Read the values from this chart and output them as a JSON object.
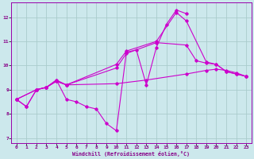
{
  "xlabel": "Windchill (Refroidissement éolien,°C)",
  "bg_color": "#cce8ec",
  "grid_color": "#aacccc",
  "line_color": "#cc00cc",
  "spine_color": "#9900aa",
  "tick_color": "#880088",
  "xlim": [
    -0.5,
    23.5
  ],
  "ylim": [
    6.8,
    12.6
  ],
  "yticks": [
    7,
    8,
    9,
    10,
    11,
    12
  ],
  "xticks": [
    0,
    1,
    2,
    3,
    4,
    5,
    6,
    7,
    8,
    9,
    10,
    11,
    12,
    13,
    14,
    15,
    16,
    17,
    18,
    19,
    20,
    21,
    22,
    23
  ],
  "line_a_x": [
    0,
    1,
    2,
    3,
    4,
    5,
    6,
    7,
    8,
    9,
    10,
    11,
    12,
    13,
    14,
    15,
    16,
    17
  ],
  "line_a_y": [
    8.6,
    8.3,
    9.0,
    9.1,
    9.4,
    8.6,
    8.5,
    8.3,
    8.2,
    7.6,
    7.3,
    10.55,
    10.65,
    9.2,
    10.75,
    11.7,
    12.3,
    12.15
  ],
  "line_b_x": [
    0,
    1,
    2,
    3,
    4,
    5,
    10,
    11,
    14,
    17,
    18,
    19,
    20,
    21,
    22,
    23
  ],
  "line_b_y": [
    8.6,
    8.3,
    9.0,
    9.1,
    9.4,
    9.2,
    9.9,
    10.5,
    10.95,
    10.85,
    10.2,
    10.1,
    10.05,
    9.75,
    9.65,
    9.55
  ],
  "line_c_x": [
    0,
    2,
    3,
    4,
    5,
    10,
    13,
    17,
    19,
    20,
    21,
    22,
    23
  ],
  "line_c_y": [
    8.6,
    9.0,
    9.1,
    9.35,
    9.2,
    9.25,
    9.4,
    9.65,
    9.8,
    9.85,
    9.8,
    9.7,
    9.55
  ],
  "line_d_x": [
    0,
    2,
    3,
    4,
    5,
    10,
    11,
    14,
    16,
    17,
    19,
    20,
    21,
    22,
    23
  ],
  "line_d_y": [
    8.6,
    9.0,
    9.1,
    9.35,
    9.2,
    10.05,
    10.6,
    11.0,
    12.2,
    11.85,
    10.15,
    10.05,
    9.75,
    9.65,
    9.55
  ]
}
